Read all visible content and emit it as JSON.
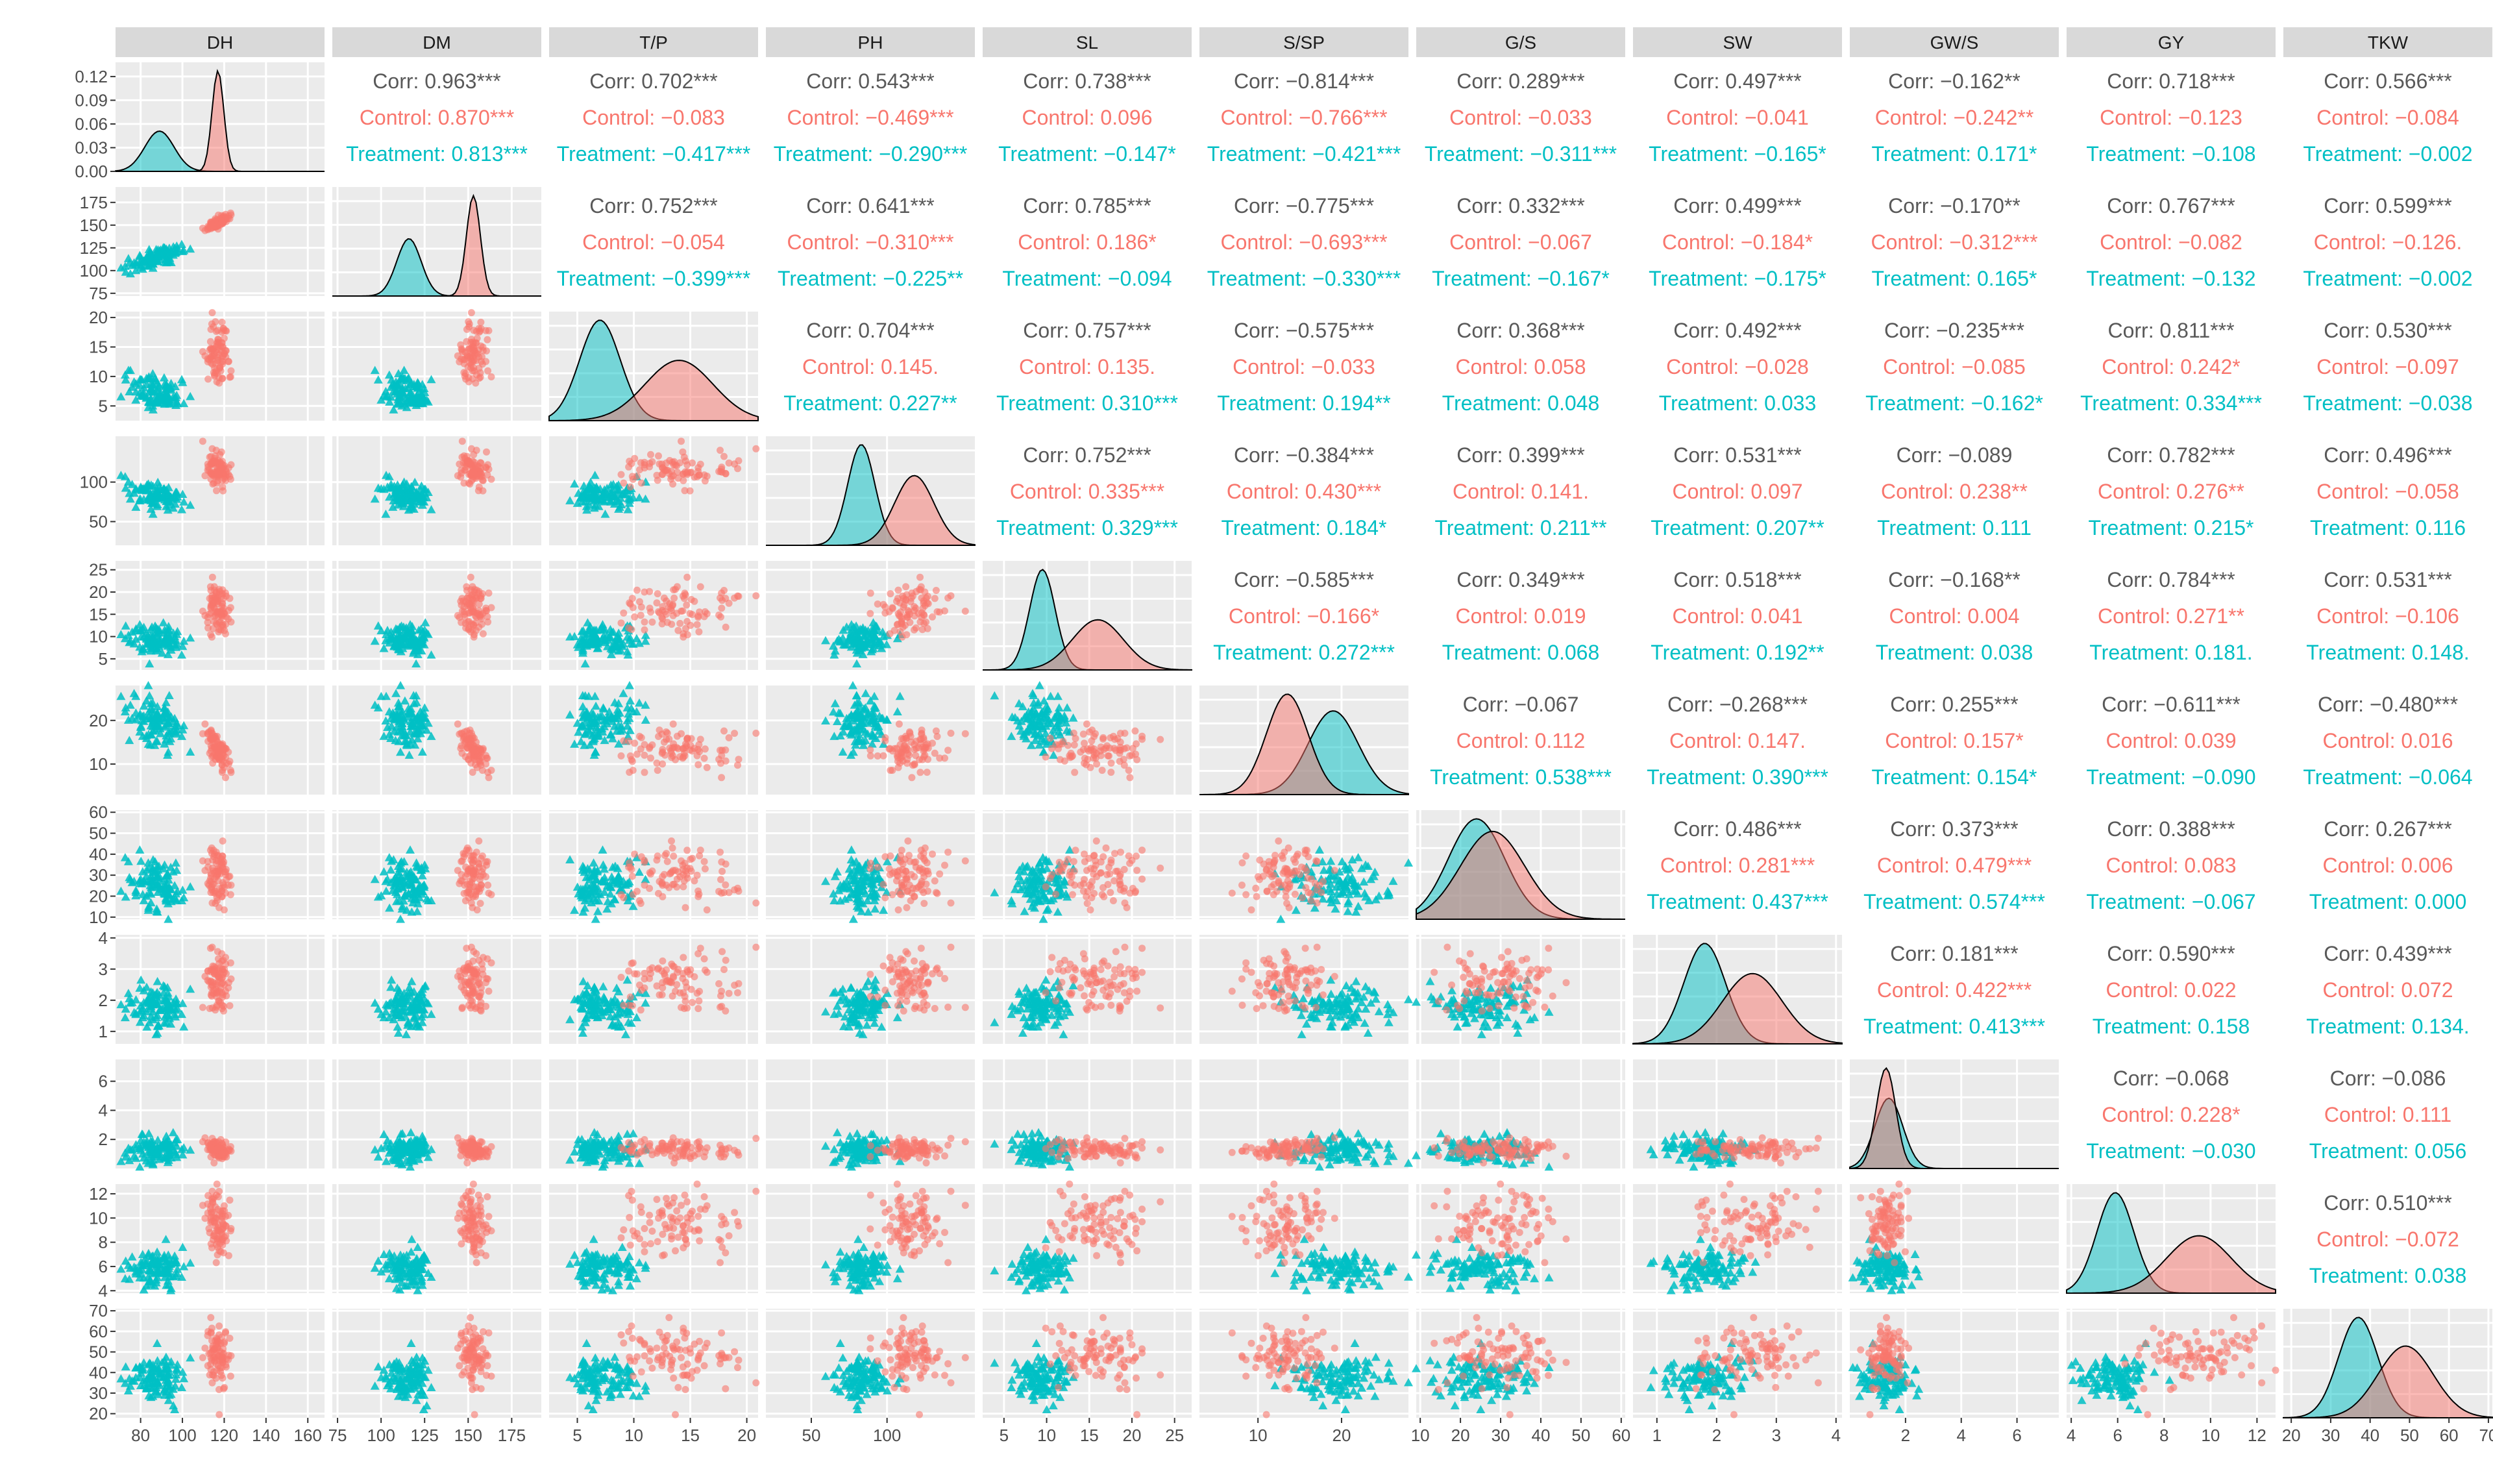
{
  "chart_data": {
    "type": "scatter",
    "title": "",
    "variables": [
      "DH",
      "DM",
      "T/P",
      "PH",
      "SL",
      "S/SP",
      "G/S",
      "SW",
      "GW/S",
      "GY",
      "TKW"
    ],
    "groups": [
      {
        "name": "Control",
        "color": "#F8766D",
        "marker": "circle"
      },
      {
        "name": "Treatment",
        "color": "#00BFC4",
        "marker": "triangle"
      }
    ],
    "axis_ticks": {
      "DH": {
        "range": [
          68,
          168
        ],
        "ticks": [
          80,
          100,
          120,
          140,
          160
        ],
        "labels": [
          "80",
          "100",
          "120",
          "140",
          "160"
        ]
      },
      "DM": {
        "range": [
          72,
          192
        ],
        "ticks": [
          75,
          100,
          125,
          150,
          175
        ],
        "labels": [
          "75",
          "100",
          "125",
          "150",
          "175"
        ]
      },
      "T/P": {
        "range": [
          2.5,
          21
        ],
        "ticks": [
          5,
          10,
          15,
          20
        ],
        "labels": [
          "5",
          "10",
          "15",
          "20"
        ]
      },
      "PH": {
        "range": [
          20,
          158
        ],
        "ticks": [
          50,
          100
        ],
        "labels": [
          "50",
          "100"
        ]
      },
      "SL": {
        "range": [
          2.5,
          27
        ],
        "ticks": [
          5,
          10,
          15,
          20,
          25
        ],
        "labels": [
          "5",
          "10",
          "15",
          "20",
          "25"
        ]
      },
      "S/SP": {
        "range": [
          3,
          28
        ],
        "ticks": [
          10,
          20
        ],
        "labels": [
          "10",
          "20"
        ]
      },
      "G/S": {
        "range": [
          9,
          61
        ],
        "ticks": [
          10,
          20,
          30,
          40,
          50,
          60
        ],
        "labels": [
          "10",
          "20",
          "30",
          "40",
          "50",
          "60"
        ]
      },
      "SW": {
        "range": [
          0.6,
          4.1
        ],
        "ticks": [
          1,
          2,
          3,
          4
        ],
        "labels": [
          "1",
          "2",
          "3",
          "4"
        ]
      },
      "GW/S": {
        "range": [
          0,
          7.5
        ],
        "ticks": [
          2,
          4,
          6
        ],
        "labels": [
          "2",
          "4",
          "6"
        ]
      },
      "GY": {
        "range": [
          3.8,
          12.8
        ],
        "ticks": [
          4,
          6,
          8,
          10,
          12
        ],
        "labels": [
          "4",
          "6",
          "8",
          "10",
          "12"
        ]
      },
      "TKW": {
        "range": [
          18,
          71
        ],
        "ticks": [
          20,
          30,
          40,
          50,
          60,
          70
        ],
        "labels": [
          "20",
          "30",
          "40",
          "50",
          "60",
          "70"
        ]
      }
    },
    "density_y_axis": {
      "ticks": [
        0,
        0.03,
        0.06,
        0.09,
        0.12
      ],
      "labels": [
        "0.00",
        "0.03",
        "0.06",
        "0.09",
        "0.12"
      ]
    },
    "summary": {
      "DH": {
        "Control": {
          "mean": 117,
          "sd": 2.8
        },
        "Treatment": {
          "mean": 89,
          "sd": 7
        }
      },
      "DM": {
        "Control": {
          "mean": 153,
          "sd": 4
        },
        "Treatment": {
          "mean": 116,
          "sd": 7
        }
      },
      "T/P": {
        "Control": {
          "mean": 14,
          "sd": 3
        },
        "Treatment": {
          "mean": 7,
          "sd": 1.8
        }
      },
      "PH": {
        "Control": {
          "mean": 118,
          "sd": 13
        },
        "Treatment": {
          "mean": 83,
          "sd": 9
        }
      },
      "SL": {
        "Control": {
          "mean": 16,
          "sd": 3
        },
        "Treatment": {
          "mean": 9.5,
          "sd": 1.5
        }
      },
      "S/SP": {
        "Control": {
          "mean": 13.5,
          "sd": 2.5
        },
        "Treatment": {
          "mean": 19,
          "sd": 3
        }
      },
      "G/S": {
        "Control": {
          "mean": 28,
          "sd": 8
        },
        "Treatment": {
          "mean": 24,
          "sd": 7
        }
      },
      "SW": {
        "Control": {
          "mean": 2.6,
          "sd": 0.5
        },
        "Treatment": {
          "mean": 1.8,
          "sd": 0.35
        }
      },
      "GW/S": {
        "Control": {
          "mean": 1.3,
          "sd": 0.35
        },
        "Treatment": {
          "mean": 1.4,
          "sd": 0.5
        }
      },
      "GY": {
        "Control": {
          "mean": 9.5,
          "sd": 1.4
        },
        "Treatment": {
          "mean": 5.9,
          "sd": 0.8
        }
      },
      "TKW": {
        "Control": {
          "mean": 49,
          "sd": 7
        },
        "Treatment": {
          "mean": 37,
          "sd": 5
        }
      }
    },
    "correlations": {
      "DH": {
        "DM": {
          "corr": "Corr: 0.963***",
          "control": "Control: 0.870***",
          "treatment": "Treatment: 0.813***"
        },
        "T/P": {
          "corr": "Corr: 0.702***",
          "control": "Control: −0.083",
          "treatment": "Treatment: −0.417***"
        },
        "PH": {
          "corr": "Corr: 0.543***",
          "control": "Control: −0.469***",
          "treatment": "Treatment: −0.290***"
        },
        "SL": {
          "corr": "Corr: 0.738***",
          "control": "Control: 0.096",
          "treatment": "Treatment: −0.147*"
        },
        "S/SP": {
          "corr": "Corr: −0.814***",
          "control": "Control: −0.766***",
          "treatment": "Treatment: −0.421***"
        },
        "G/S": {
          "corr": "Corr: 0.289***",
          "control": "Control: −0.033",
          "treatment": "Treatment: −0.311***"
        },
        "SW": {
          "corr": "Corr: 0.497***",
          "control": "Control: −0.041",
          "treatment": "Treatment: −0.165*"
        },
        "GW/S": {
          "corr": "Corr: −0.162**",
          "control": "Control: −0.242**",
          "treatment": "Treatment: 0.171*"
        },
        "GY": {
          "corr": "Corr: 0.718***",
          "control": "Control: −0.123",
          "treatment": "Treatment: −0.108"
        },
        "TKW": {
          "corr": "Corr: 0.566***",
          "control": "Control: −0.084",
          "treatment": "Treatment: −0.002"
        }
      },
      "DM": {
        "T/P": {
          "corr": "Corr: 0.752***",
          "control": "Control: −0.054",
          "treatment": "Treatment: −0.399***"
        },
        "PH": {
          "corr": "Corr: 0.641***",
          "control": "Control: −0.310***",
          "treatment": "Treatment: −0.225**"
        },
        "SL": {
          "corr": "Corr: 0.785***",
          "control": "Control: 0.186*",
          "treatment": "Treatment: −0.094"
        },
        "S/SP": {
          "corr": "Corr: −0.775***",
          "control": "Control: −0.693***",
          "treatment": "Treatment: −0.330***"
        },
        "G/S": {
          "corr": "Corr: 0.332***",
          "control": "Control: −0.067",
          "treatment": "Treatment: −0.167*"
        },
        "SW": {
          "corr": "Corr: 0.499***",
          "control": "Control: −0.184*",
          "treatment": "Treatment: −0.175*"
        },
        "GW/S": {
          "corr": "Corr: −0.170**",
          "control": "Control: −0.312***",
          "treatment": "Treatment: 0.165*"
        },
        "GY": {
          "corr": "Corr: 0.767***",
          "control": "Control: −0.082",
          "treatment": "Treatment: −0.132"
        },
        "TKW": {
          "corr": "Corr: 0.599***",
          "control": "Control: −0.126.",
          "treatment": "Treatment: −0.002"
        }
      },
      "T/P": {
        "PH": {
          "corr": "Corr: 0.704***",
          "control": "Control: 0.145.",
          "treatment": "Treatment: 0.227**"
        },
        "SL": {
          "corr": "Corr: 0.757***",
          "control": "Control: 0.135.",
          "treatment": "Treatment: 0.310***"
        },
        "S/SP": {
          "corr": "Corr: −0.575***",
          "control": "Control: −0.033",
          "treatment": "Treatment: 0.194**"
        },
        "G/S": {
          "corr": "Corr: 0.368***",
          "control": "Control: 0.058",
          "treatment": "Treatment: 0.048"
        },
        "SW": {
          "corr": "Corr: 0.492***",
          "control": "Control: −0.028",
          "treatment": "Treatment: 0.033"
        },
        "GW/S": {
          "corr": "Corr: −0.235***",
          "control": "Control: −0.085",
          "treatment": "Treatment: −0.162*"
        },
        "GY": {
          "corr": "Corr: 0.811***",
          "control": "Control: 0.242*",
          "treatment": "Treatment: 0.334***"
        },
        "TKW": {
          "corr": "Corr: 0.530***",
          "control": "Control: −0.097",
          "treatment": "Treatment: −0.038"
        }
      },
      "PH": {
        "SL": {
          "corr": "Corr: 0.752***",
          "control": "Control: 0.335***",
          "treatment": "Treatment: 0.329***"
        },
        "S/SP": {
          "corr": "Corr: −0.384***",
          "control": "Control: 0.430***",
          "treatment": "Treatment: 0.184*"
        },
        "G/S": {
          "corr": "Corr: 0.399***",
          "control": "Control: 0.141.",
          "treatment": "Treatment: 0.211**"
        },
        "SW": {
          "corr": "Corr: 0.531***",
          "control": "Control: 0.097",
          "treatment": "Treatment: 0.207**"
        },
        "GW/S": {
          "corr": "Corr: −0.089",
          "control": "Control: 0.238**",
          "treatment": "Treatment: 0.111"
        },
        "GY": {
          "corr": "Corr: 0.782***",
          "control": "Control: 0.276**",
          "treatment": "Treatment: 0.215*"
        },
        "TKW": {
          "corr": "Corr: 0.496***",
          "control": "Control: −0.058",
          "treatment": "Treatment: 0.116"
        }
      },
      "SL": {
        "S/SP": {
          "corr": "Corr: −0.585***",
          "control": "Control: −0.166*",
          "treatment": "Treatment: 0.272***"
        },
        "G/S": {
          "corr": "Corr: 0.349***",
          "control": "Control: 0.019",
          "treatment": "Treatment: 0.068"
        },
        "SW": {
          "corr": "Corr: 0.518***",
          "control": "Control: 0.041",
          "treatment": "Treatment: 0.192**"
        },
        "GW/S": {
          "corr": "Corr: −0.168**",
          "control": "Control: 0.004",
          "treatment": "Treatment: 0.038"
        },
        "GY": {
          "corr": "Corr: 0.784***",
          "control": "Control: 0.271**",
          "treatment": "Treatment: 0.181."
        },
        "TKW": {
          "corr": "Corr: 0.531***",
          "control": "Control: −0.106",
          "treatment": "Treatment: 0.148."
        }
      },
      "S/SP": {
        "G/S": {
          "corr": "Corr: −0.067",
          "control": "Control: 0.112",
          "treatment": "Treatment: 0.538***"
        },
        "SW": {
          "corr": "Corr: −0.268***",
          "control": "Control: 0.147.",
          "treatment": "Treatment: 0.390***"
        },
        "GW/S": {
          "corr": "Corr: 0.255***",
          "control": "Control: 0.157*",
          "treatment": "Treatment: 0.154*"
        },
        "GY": {
          "corr": "Corr: −0.611***",
          "control": "Control: 0.039",
          "treatment": "Treatment: −0.090"
        },
        "TKW": {
          "corr": "Corr: −0.480***",
          "control": "Control: 0.016",
          "treatment": "Treatment: −0.064"
        }
      },
      "G/S": {
        "SW": {
          "corr": "Corr: 0.486***",
          "control": "Control: 0.281***",
          "treatment": "Treatment: 0.437***"
        },
        "GW/S": {
          "corr": "Corr: 0.373***",
          "control": "Control: 0.479***",
          "treatment": "Treatment: 0.574***"
        },
        "GY": {
          "corr": "Corr: 0.388***",
          "control": "Control: 0.083",
          "treatment": "Treatment: −0.067"
        },
        "TKW": {
          "corr": "Corr: 0.267***",
          "control": "Control: 0.006",
          "treatment": "Treatment: 0.000"
        }
      },
      "SW": {
        "GW/S": {
          "corr": "Corr: 0.181***",
          "control": "Control: 0.422***",
          "treatment": "Treatment: 0.413***"
        },
        "GY": {
          "corr": "Corr: 0.590***",
          "control": "Control: 0.022",
          "treatment": "Treatment: 0.158"
        },
        "TKW": {
          "corr": "Corr: 0.439***",
          "control": "Control: 0.072",
          "treatment": "Treatment: 0.134."
        }
      },
      "GW/S": {
        "GY": {
          "corr": "Corr: −0.068",
          "control": "Control: 0.228*",
          "treatment": "Treatment: −0.030"
        },
        "TKW": {
          "corr": "Corr: −0.086",
          "control": "Control: 0.111",
          "treatment": "Treatment: 0.056"
        }
      },
      "GY": {
        "TKW": {
          "corr": "Corr: 0.510***",
          "control": "Control: −0.072",
          "treatment": "Treatment: 0.038"
        }
      }
    }
  }
}
